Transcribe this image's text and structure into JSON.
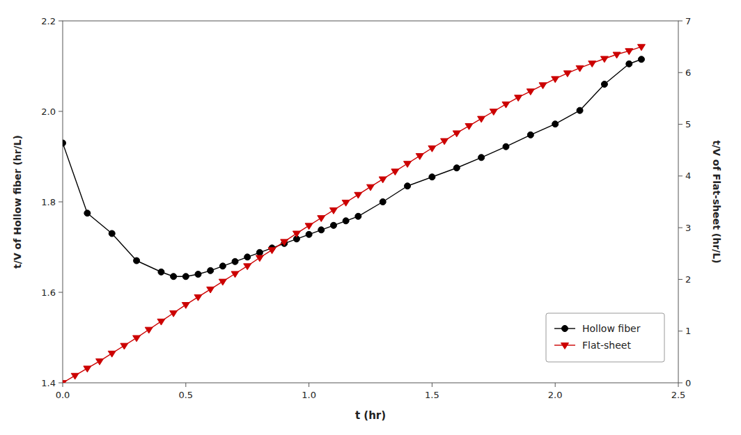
{
  "chart_data": {
    "type": "line",
    "xlabel": "t (hr)",
    "ylabel": "t/V of Hollow fiber (hr/L)",
    "y2label": "t/V of Flat-sheet (hr/L)",
    "xlim": [
      0.0,
      2.5
    ],
    "xticks": [
      {
        "value": 0.0,
        "label": "0.0"
      },
      0.5,
      {
        "value": 1.0,
        "label": "1.0"
      },
      1.5,
      {
        "value": 2.0,
        "label": "2.0"
      },
      2.5
    ],
    "ylim": [
      1.4,
      2.2
    ],
    "yticks": [
      1.4,
      1.6,
      1.8,
      {
        "value": 2.0,
        "label": "2.0"
      },
      2.2
    ],
    "y2lim": [
      0,
      7
    ],
    "y2ticks": [
      0,
      1,
      2,
      3,
      4,
      5,
      6,
      7
    ],
    "grid": false,
    "legend": "lower right",
    "series": [
      {
        "name": "Hollow fiber",
        "color": "#000000",
        "marker": "circle",
        "x": [
          0.0,
          0.1,
          0.2,
          0.3,
          0.4,
          0.45,
          0.5,
          0.55,
          0.6,
          0.65,
          0.7,
          0.75,
          0.8,
          0.85,
          0.9,
          0.95,
          1.0,
          1.05,
          1.1,
          1.15,
          1.2,
          1.3,
          1.4,
          1.5,
          1.6,
          1.7,
          1.8,
          1.9,
          2.0,
          2.1,
          2.2,
          2.3,
          2.35
        ],
        "values": [
          1.93,
          1.775,
          1.73,
          1.67,
          1.645,
          1.635,
          1.635,
          1.64,
          1.648,
          1.658,
          1.668,
          1.678,
          1.688,
          1.698,
          1.708,
          1.718,
          1.728,
          1.738,
          1.748,
          1.758,
          1.768,
          1.8,
          1.835,
          1.855,
          1.875,
          1.898,
          1.922,
          1.948,
          1.972,
          2.002,
          2.06,
          2.105,
          2.115
        ]
      },
      {
        "name": "Flat-sheet",
        "color": "#cc0000",
        "marker": "triangle-down",
        "axis": "y2",
        "x": [
          0.0,
          0.05,
          0.1,
          0.15,
          0.2,
          0.25,
          0.3,
          0.35,
          0.4,
          0.45,
          0.5,
          0.55,
          0.6,
          0.65,
          0.7,
          0.75,
          0.8,
          0.85,
          0.9,
          0.95,
          1.0,
          1.05,
          1.1,
          1.15,
          1.2,
          1.25,
          1.3,
          1.35,
          1.4,
          1.45,
          1.5,
          1.55,
          1.6,
          1.65,
          1.7,
          1.75,
          1.8,
          1.85,
          1.9,
          1.95,
          2.0,
          2.05,
          2.1,
          2.15,
          2.2,
          2.25,
          2.3,
          2.35
        ],
        "values": [
          0.0,
          0.14,
          0.28,
          0.42,
          0.57,
          0.72,
          0.87,
          1.03,
          1.19,
          1.35,
          1.51,
          1.66,
          1.81,
          1.96,
          2.11,
          2.26,
          2.42,
          2.57,
          2.73,
          2.89,
          3.04,
          3.19,
          3.34,
          3.49,
          3.64,
          3.79,
          3.94,
          4.09,
          4.24,
          4.39,
          4.54,
          4.68,
          4.83,
          4.97,
          5.11,
          5.25,
          5.39,
          5.52,
          5.64,
          5.76,
          5.88,
          5.99,
          6.09,
          6.18,
          6.27,
          6.35,
          6.42,
          6.5
        ]
      }
    ]
  }
}
